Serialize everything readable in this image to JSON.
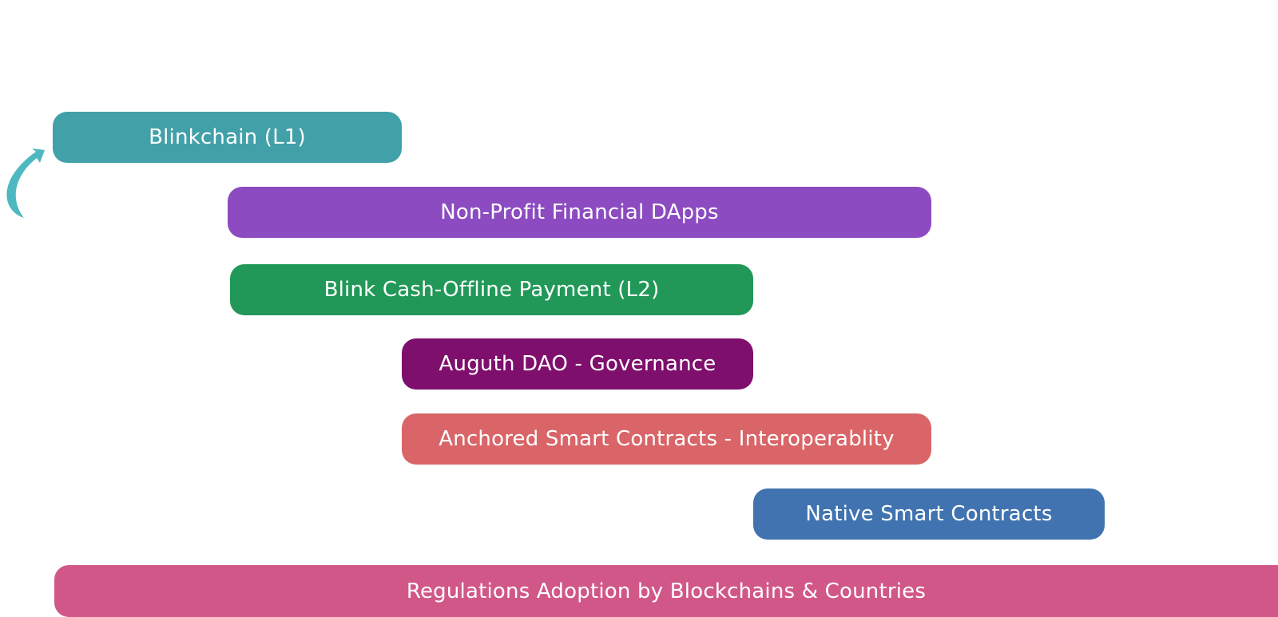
{
  "bars": [
    {
      "label": "Blinkchain (L1)",
      "color": "#41A0A8"
    },
    {
      "label": "Non-Profit Financial DApps",
      "color": "#8C4BC0"
    },
    {
      "label": "Blink Cash-Offline Payment (L2)",
      "color": "#219857"
    },
    {
      "label": "Auguth DAO - Governance",
      "color": "#7F0F6C"
    },
    {
      "label": "Anchored Smart Contracts - Interoperablity",
      "color": "#D96568"
    },
    {
      "label": "Native Smart Contracts",
      "color": "#4173B0"
    },
    {
      "label": "Regulations Adoption by Blockchains & Countries",
      "color": "#D15789"
    }
  ],
  "arrow": {
    "icon": "curved-arrow-icon",
    "color": "#4DB8C0"
  }
}
